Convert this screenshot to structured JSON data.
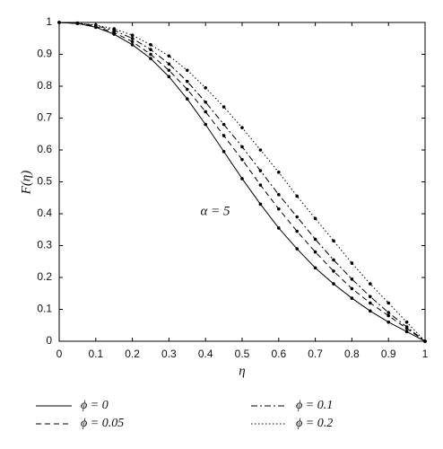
{
  "chart_data": {
    "type": "line",
    "x_label": "η",
    "y_label": "F(η)",
    "annotation": "α = 5",
    "x": [
      0,
      0.05,
      0.1,
      0.15,
      0.2,
      0.25,
      0.3,
      0.35,
      0.4,
      0.45,
      0.5,
      0.55,
      0.6,
      0.65,
      0.7,
      0.75,
      0.8,
      0.85,
      0.9,
      0.95,
      1
    ],
    "series": [
      {
        "name": "ϕ = 0",
        "color": "#000000",
        "style": "solid",
        "values": [
          1,
          0.997,
          0.985,
          0.963,
          0.93,
          0.887,
          0.83,
          0.76,
          0.68,
          0.595,
          0.51,
          0.43,
          0.355,
          0.29,
          0.23,
          0.18,
          0.135,
          0.095,
          0.06,
          0.03,
          0
        ]
      },
      {
        "name": "ϕ = 0.05",
        "color": "#000000",
        "style": "dashed",
        "values": [
          1,
          0.997,
          0.987,
          0.968,
          0.94,
          0.9,
          0.85,
          0.79,
          0.72,
          0.645,
          0.57,
          0.49,
          0.415,
          0.345,
          0.28,
          0.22,
          0.165,
          0.12,
          0.08,
          0.04,
          0
        ]
      },
      {
        "name": "ϕ = 0.1",
        "color": "#000000",
        "style": "dashdot",
        "values": [
          1,
          0.998,
          0.99,
          0.975,
          0.95,
          0.915,
          0.87,
          0.815,
          0.75,
          0.68,
          0.61,
          0.535,
          0.46,
          0.39,
          0.32,
          0.255,
          0.195,
          0.14,
          0.09,
          0.045,
          0
        ]
      },
      {
        "name": "ϕ = 0.2",
        "color": "#000000",
        "style": "dotted",
        "values": [
          1,
          0.998,
          0.992,
          0.98,
          0.96,
          0.93,
          0.895,
          0.85,
          0.795,
          0.735,
          0.67,
          0.6,
          0.53,
          0.455,
          0.385,
          0.315,
          0.245,
          0.18,
          0.12,
          0.06,
          0
        ]
      }
    ],
    "xlim": [
      0,
      1
    ],
    "ylim": [
      0,
      1
    ],
    "xticks": [
      0,
      0.1,
      0.2,
      0.3,
      0.4,
      0.5,
      0.6,
      0.7,
      0.8,
      0.9,
      1
    ],
    "yticks": [
      0,
      0.1,
      0.2,
      0.3,
      0.4,
      0.5,
      0.6,
      0.7,
      0.8,
      0.9,
      1
    ]
  }
}
